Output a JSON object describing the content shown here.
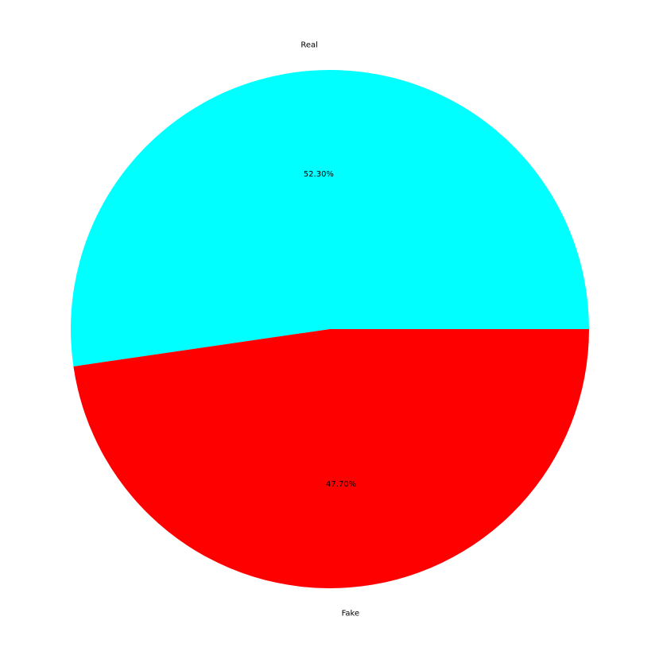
{
  "chart_data": {
    "type": "pie",
    "title": "",
    "slices": [
      {
        "label": "Real",
        "value": 52.3,
        "pct_label": "52.30%",
        "color": "#00ffff"
      },
      {
        "label": "Fake",
        "value": 47.7,
        "pct_label": "47.70%",
        "color": "#ff0000"
      }
    ],
    "start_angle_deg": 0,
    "direction": "counterclockwise",
    "legend": "none"
  }
}
